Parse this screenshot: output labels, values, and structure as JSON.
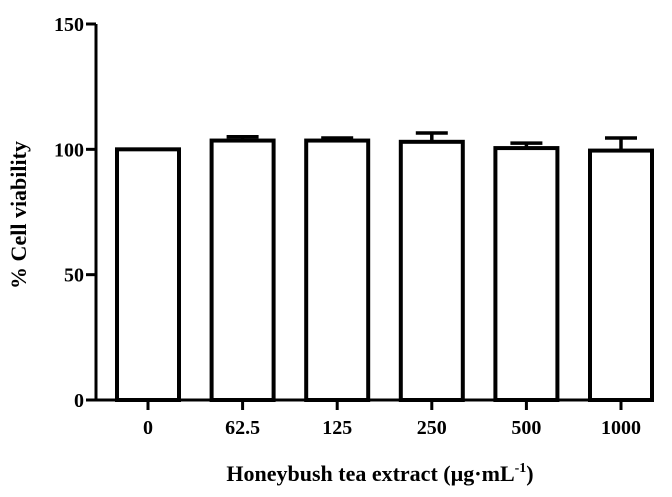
{
  "chart_data": {
    "type": "bar",
    "categories": [
      "0",
      "62.5",
      "125",
      "250",
      "500",
      "1000"
    ],
    "values": [
      100,
      103.5,
      103.5,
      103,
      100.5,
      99.5
    ],
    "errors": [
      0,
      1.5,
      1.0,
      3.5,
      2.0,
      5.0
    ],
    "ylim": [
      0,
      150
    ],
    "yticks": [
      0,
      50,
      100,
      150
    ],
    "ylabel": "% Cell viability",
    "xlabel_main": "Honeybush tea extract (µg·mL",
    "xlabel_sup": "-1",
    "xlabel_end": ")",
    "grid": false,
    "colors": {
      "bar_fill": "#ffffff",
      "bar_stroke": "#000000"
    }
  }
}
